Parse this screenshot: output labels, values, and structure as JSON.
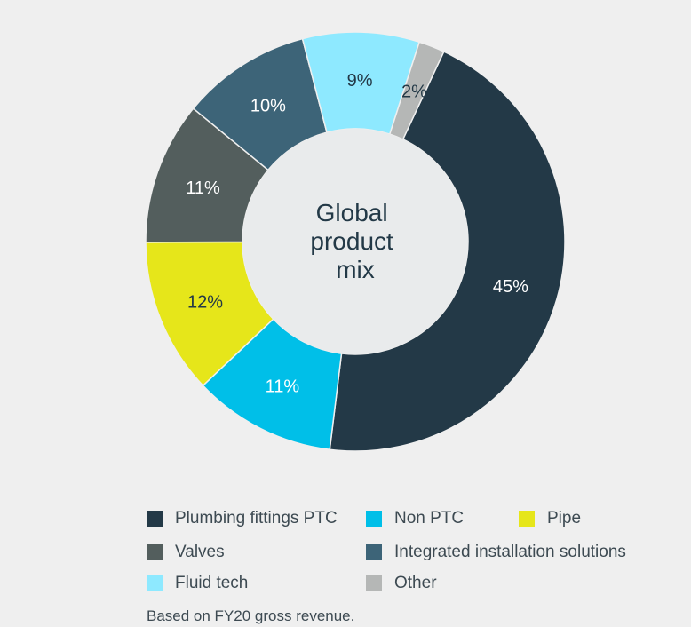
{
  "chart_data": {
    "type": "pie",
    "variant": "donut",
    "center_label": [
      "Global",
      "product",
      "mix"
    ],
    "categories": [
      "Plumbing fittings PTC",
      "Non PTC",
      "Pipe",
      "Valves",
      "Integrated installation solutions",
      "Fluid tech",
      "Other"
    ],
    "values": [
      45,
      11,
      12,
      11,
      10,
      9,
      2
    ],
    "value_labels": [
      "45%",
      "11%",
      "12%",
      "11%",
      "10%",
      "9%",
      "2%"
    ],
    "colors": [
      "#233947",
      "#00bfe8",
      "#e6e61a",
      "#535e5d",
      "#3d6478",
      "#8ee9ff",
      "#b5b7b6"
    ],
    "label_colors": [
      "#ffffff",
      "#ffffff",
      "#233947",
      "#ffffff",
      "#ffffff",
      "#233947",
      "#233947"
    ],
    "start_angle_deg": -65,
    "direction": "clockwise",
    "legend_placement": "bottom",
    "footnote": "Based on FY20 gross revenue."
  }
}
